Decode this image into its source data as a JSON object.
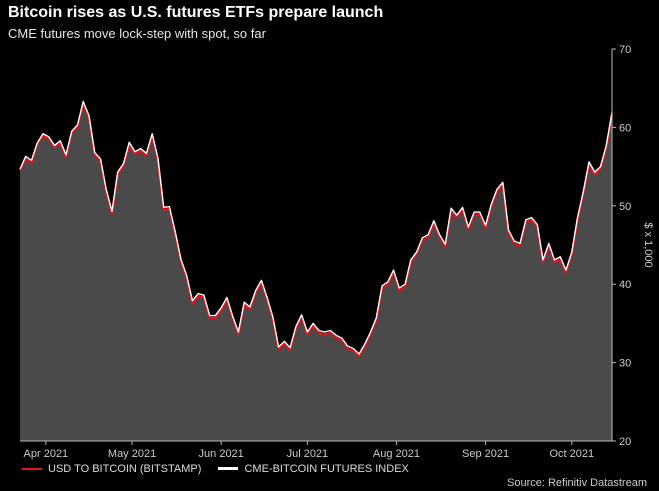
{
  "chart_data": {
    "type": "area",
    "title": "Bitcoin rises as U.S. futures ETFs prepare launch",
    "subtitle": "CME futures move lock-step with spot, so far",
    "ylabel": "$ x 1,000",
    "ylim": [
      20,
      70
    ],
    "y_ticks": [
      20,
      30,
      40,
      50,
      60,
      70
    ],
    "y_axis_position": "right",
    "x_range": [
      "2021-03-23",
      "2021-10-15"
    ],
    "x_ticks": [
      {
        "date": "2021-04-01",
        "label": "Apr 2021"
      },
      {
        "date": "2021-05-01",
        "label": "May 2021"
      },
      {
        "date": "2021-06-01",
        "label": "Jun 2021"
      },
      {
        "date": "2021-07-01",
        "label": "Jul 2021"
      },
      {
        "date": "2021-08-01",
        "label": "Aug 2021"
      },
      {
        "date": "2021-09-01",
        "label": "Sep 2021"
      },
      {
        "date": "2021-10-01",
        "label": "Oct 2021"
      }
    ],
    "grid": false,
    "legend_position": "bottom-left",
    "source": "Source: Refinitiv Datastream",
    "series": [
      {
        "name": "USD TO BITCOIN (BITSTAMP)",
        "color": "#e0141e",
        "dates": [
          "2021-03-23",
          "2021-03-25",
          "2021-03-27",
          "2021-03-29",
          "2021-03-31",
          "2021-04-02",
          "2021-04-04",
          "2021-04-06",
          "2021-04-08",
          "2021-04-10",
          "2021-04-12",
          "2021-04-14",
          "2021-04-16",
          "2021-04-18",
          "2021-04-20",
          "2021-04-22",
          "2021-04-24",
          "2021-04-26",
          "2021-04-28",
          "2021-04-30",
          "2021-05-02",
          "2021-05-04",
          "2021-05-06",
          "2021-05-08",
          "2021-05-10",
          "2021-05-12",
          "2021-05-14",
          "2021-05-16",
          "2021-05-18",
          "2021-05-20",
          "2021-05-22",
          "2021-05-24",
          "2021-05-26",
          "2021-05-28",
          "2021-05-30",
          "2021-06-01",
          "2021-06-03",
          "2021-06-05",
          "2021-06-07",
          "2021-06-09",
          "2021-06-11",
          "2021-06-13",
          "2021-06-15",
          "2021-06-17",
          "2021-06-19",
          "2021-06-21",
          "2021-06-23",
          "2021-06-25",
          "2021-06-27",
          "2021-06-29",
          "2021-07-01",
          "2021-07-03",
          "2021-07-05",
          "2021-07-07",
          "2021-07-09",
          "2021-07-11",
          "2021-07-13",
          "2021-07-15",
          "2021-07-17",
          "2021-07-19",
          "2021-07-21",
          "2021-07-23",
          "2021-07-25",
          "2021-07-27",
          "2021-07-29",
          "2021-07-31",
          "2021-08-02",
          "2021-08-04",
          "2021-08-06",
          "2021-08-08",
          "2021-08-10",
          "2021-08-12",
          "2021-08-14",
          "2021-08-16",
          "2021-08-18",
          "2021-08-20",
          "2021-08-22",
          "2021-08-24",
          "2021-08-26",
          "2021-08-28",
          "2021-08-30",
          "2021-09-01",
          "2021-09-03",
          "2021-09-05",
          "2021-09-07",
          "2021-09-09",
          "2021-09-11",
          "2021-09-13",
          "2021-09-15",
          "2021-09-17",
          "2021-09-19",
          "2021-09-21",
          "2021-09-23",
          "2021-09-25",
          "2021-09-27",
          "2021-09-29",
          "2021-10-01",
          "2021-10-03",
          "2021-10-05",
          "2021-10-07",
          "2021-10-09",
          "2021-10-11",
          "2021-10-13",
          "2021-10-15"
        ],
        "values": [
          54.5,
          56.0,
          55.5,
          57.8,
          58.9,
          58.6,
          57.5,
          58.0,
          56.2,
          59.3,
          60.0,
          63.0,
          61.2,
          56.5,
          55.7,
          51.8,
          49.0,
          54.0,
          55.1,
          57.8,
          56.6,
          57.0,
          56.4,
          58.9,
          55.8,
          49.5,
          49.6,
          46.4,
          42.9,
          40.8,
          37.5,
          38.5,
          38.3,
          35.7,
          35.7,
          36.7,
          38.0,
          35.6,
          33.6,
          37.4,
          36.8,
          38.9,
          40.2,
          38.0,
          35.5,
          31.7,
          32.4,
          31.6,
          34.3,
          35.8,
          33.6,
          34.7,
          33.8,
          33.6,
          33.8,
          33.2,
          32.8,
          31.8,
          31.5,
          30.8,
          32.1,
          33.6,
          35.4,
          39.5,
          40.0,
          41.5,
          39.2,
          39.7,
          42.8,
          43.8,
          45.6,
          46.0,
          47.8,
          46.0,
          44.8,
          49.4,
          48.5,
          49.5,
          47.0,
          48.9,
          48.9,
          47.2,
          49.9,
          51.8,
          52.7,
          46.6,
          45.2,
          44.9,
          47.9,
          48.2,
          47.3,
          42.8,
          44.9,
          42.8,
          43.2,
          41.5,
          43.8,
          48.2,
          51.5,
          55.3,
          54.0,
          54.7,
          57.4,
          61.6
        ]
      },
      {
        "name": "CME-BITCOIN FUTURES INDEX",
        "color": "#ffffff",
        "dates": [
          "2021-03-23",
          "2021-03-25",
          "2021-03-27",
          "2021-03-29",
          "2021-03-31",
          "2021-04-02",
          "2021-04-04",
          "2021-04-06",
          "2021-04-08",
          "2021-04-10",
          "2021-04-12",
          "2021-04-14",
          "2021-04-16",
          "2021-04-18",
          "2021-04-20",
          "2021-04-22",
          "2021-04-24",
          "2021-04-26",
          "2021-04-28",
          "2021-04-30",
          "2021-05-02",
          "2021-05-04",
          "2021-05-06",
          "2021-05-08",
          "2021-05-10",
          "2021-05-12",
          "2021-05-14",
          "2021-05-16",
          "2021-05-18",
          "2021-05-20",
          "2021-05-22",
          "2021-05-24",
          "2021-05-26",
          "2021-05-28",
          "2021-05-30",
          "2021-06-01",
          "2021-06-03",
          "2021-06-05",
          "2021-06-07",
          "2021-06-09",
          "2021-06-11",
          "2021-06-13",
          "2021-06-15",
          "2021-06-17",
          "2021-06-19",
          "2021-06-21",
          "2021-06-23",
          "2021-06-25",
          "2021-06-27",
          "2021-06-29",
          "2021-07-01",
          "2021-07-03",
          "2021-07-05",
          "2021-07-07",
          "2021-07-09",
          "2021-07-11",
          "2021-07-13",
          "2021-07-15",
          "2021-07-17",
          "2021-07-19",
          "2021-07-21",
          "2021-07-23",
          "2021-07-25",
          "2021-07-27",
          "2021-07-29",
          "2021-07-31",
          "2021-08-02",
          "2021-08-04",
          "2021-08-06",
          "2021-08-08",
          "2021-08-10",
          "2021-08-12",
          "2021-08-14",
          "2021-08-16",
          "2021-08-18",
          "2021-08-20",
          "2021-08-22",
          "2021-08-24",
          "2021-08-26",
          "2021-08-28",
          "2021-08-30",
          "2021-09-01",
          "2021-09-03",
          "2021-09-05",
          "2021-09-07",
          "2021-09-09",
          "2021-09-11",
          "2021-09-13",
          "2021-09-15",
          "2021-09-17",
          "2021-09-19",
          "2021-09-21",
          "2021-09-23",
          "2021-09-25",
          "2021-09-27",
          "2021-09-29",
          "2021-10-01",
          "2021-10-03",
          "2021-10-05",
          "2021-10-07",
          "2021-10-09",
          "2021-10-11",
          "2021-10-13",
          "2021-10-15"
        ],
        "values": [
          54.7,
          56.3,
          55.8,
          58.0,
          59.2,
          58.8,
          57.7,
          58.3,
          56.5,
          59.5,
          60.3,
          63.3,
          61.5,
          56.8,
          56.0,
          52.1,
          49.3,
          54.3,
          55.4,
          58.1,
          56.9,
          57.3,
          56.7,
          59.2,
          56.1,
          49.8,
          49.9,
          46.7,
          43.2,
          41.1,
          37.9,
          38.8,
          38.6,
          36.0,
          36.0,
          37.0,
          38.3,
          35.9,
          33.9,
          37.7,
          37.1,
          39.2,
          40.5,
          38.3,
          35.8,
          32.0,
          32.7,
          31.9,
          34.6,
          36.1,
          33.9,
          35.0,
          34.1,
          33.9,
          34.1,
          33.5,
          33.1,
          32.1,
          31.8,
          31.1,
          32.4,
          33.9,
          35.7,
          39.8,
          40.3,
          41.8,
          39.5,
          40.0,
          43.1,
          44.1,
          45.9,
          46.3,
          48.1,
          46.3,
          45.1,
          49.7,
          48.8,
          49.8,
          47.3,
          49.2,
          49.2,
          47.5,
          50.2,
          52.1,
          53.0,
          46.9,
          45.5,
          45.2,
          48.2,
          48.5,
          47.6,
          43.1,
          45.2,
          43.1,
          43.5,
          41.8,
          44.1,
          48.5,
          51.8,
          55.6,
          54.3,
          55.0,
          57.7,
          61.9
        ]
      }
    ]
  }
}
